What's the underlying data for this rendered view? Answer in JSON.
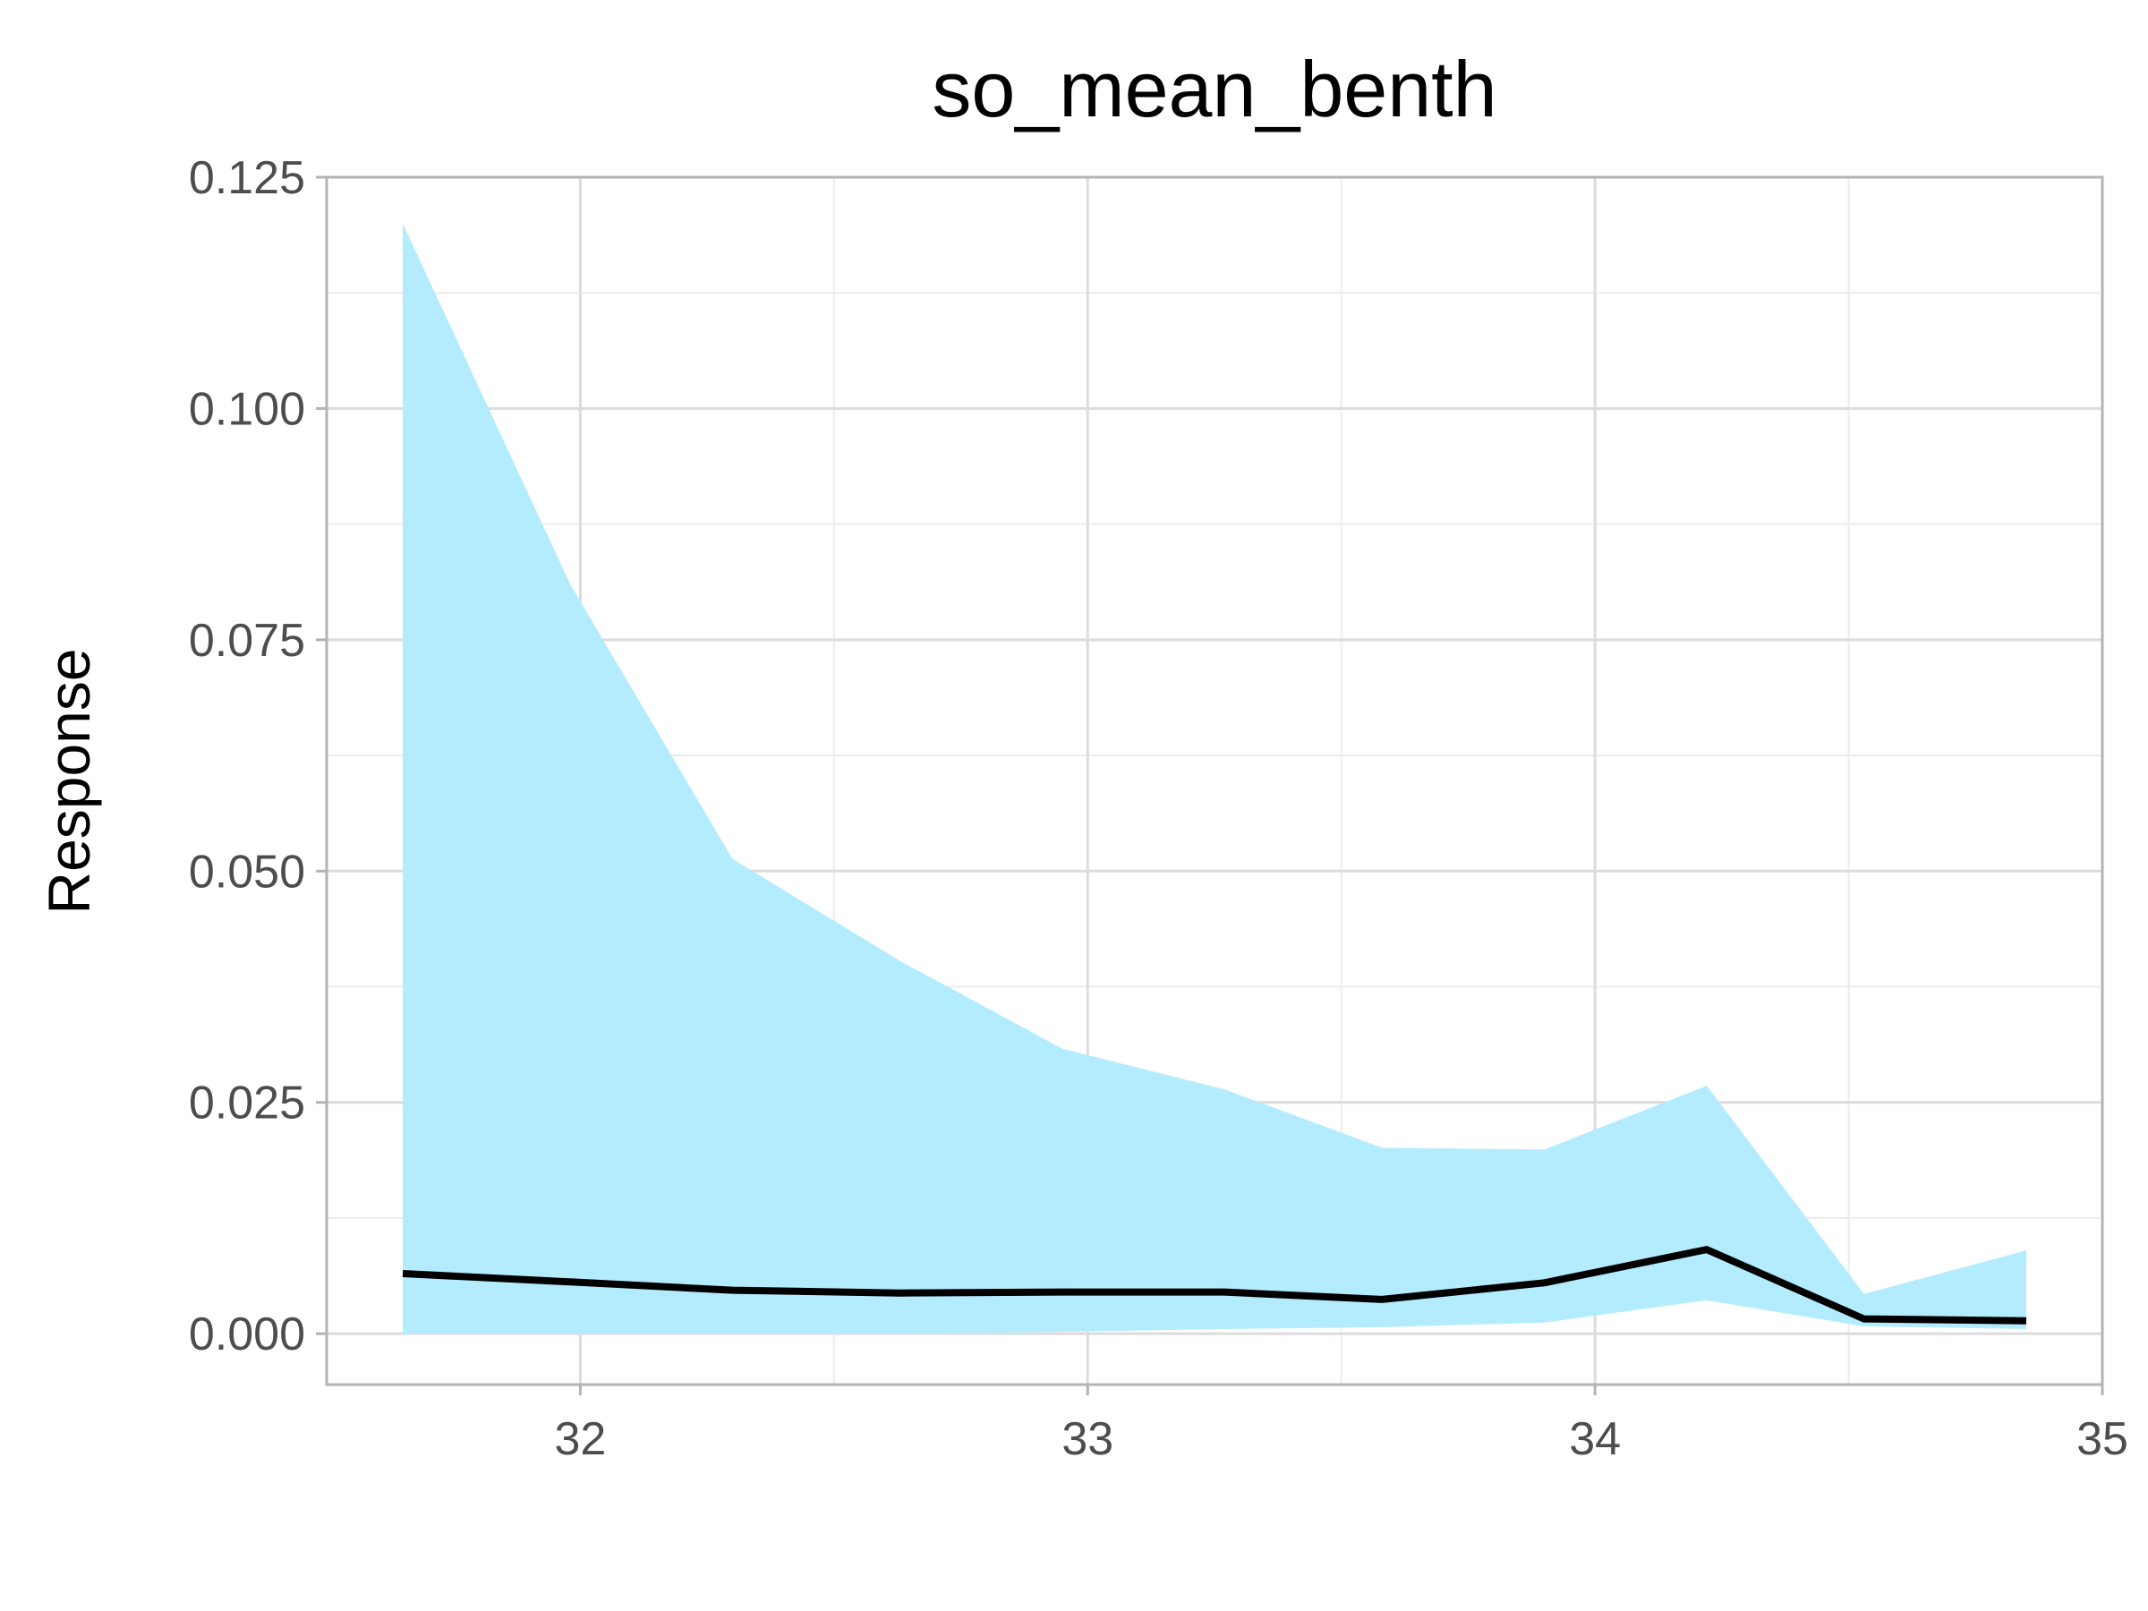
{
  "chart_data": {
    "type": "area",
    "title": "so_mean_benth",
    "xlabel": "",
    "ylabel": "Response",
    "xlim": [
      31.5,
      35.0
    ],
    "ylim": [
      -0.0055,
      0.125
    ],
    "x_ticks": [
      32,
      33,
      34,
      35
    ],
    "x_tick_labels": [
      "32",
      "33",
      "34",
      "35"
    ],
    "x_minor_ticks": [
      32.5,
      33.5,
      34.5
    ],
    "y_ticks": [
      0.0,
      0.025,
      0.05,
      0.075,
      0.1,
      0.125
    ],
    "y_tick_labels": [
      "0.000",
      "0.025",
      "0.050",
      "0.075",
      "0.100",
      "0.125"
    ],
    "y_minor_ticks": [
      0.0125,
      0.0375,
      0.0625,
      0.0875,
      0.1125
    ],
    "grid": true,
    "band_color": "#b3ecfe",
    "line_color": "#000000",
    "series": [
      {
        "name": "mean",
        "x": [
          31.65,
          31.98,
          32.3,
          32.63,
          32.95,
          33.27,
          33.58,
          33.9,
          34.22,
          34.53,
          34.85
        ],
        "values": [
          0.0065,
          0.0056,
          0.0047,
          0.0044,
          0.0045,
          0.0045,
          0.0037,
          0.0055,
          0.0091,
          0.0016,
          0.0014
        ]
      },
      {
        "name": "upper",
        "x": [
          31.65,
          31.98,
          32.3,
          32.63,
          32.95,
          33.27,
          33.58,
          33.9,
          34.22,
          34.53,
          34.85
        ],
        "values": [
          0.12,
          0.081,
          0.0513,
          0.0403,
          0.0308,
          0.0264,
          0.0201,
          0.0199,
          0.0268,
          0.0043,
          0.009
        ]
      },
      {
        "name": "lower",
        "x": [
          31.65,
          31.98,
          32.3,
          32.63,
          32.95,
          33.27,
          33.58,
          33.9,
          34.22,
          34.53,
          34.85
        ],
        "values": [
          0.0,
          0.0,
          0.0,
          0.0,
          0.0002,
          0.0005,
          0.0007,
          0.0012,
          0.0036,
          0.0008,
          0.0005
        ]
      }
    ]
  }
}
